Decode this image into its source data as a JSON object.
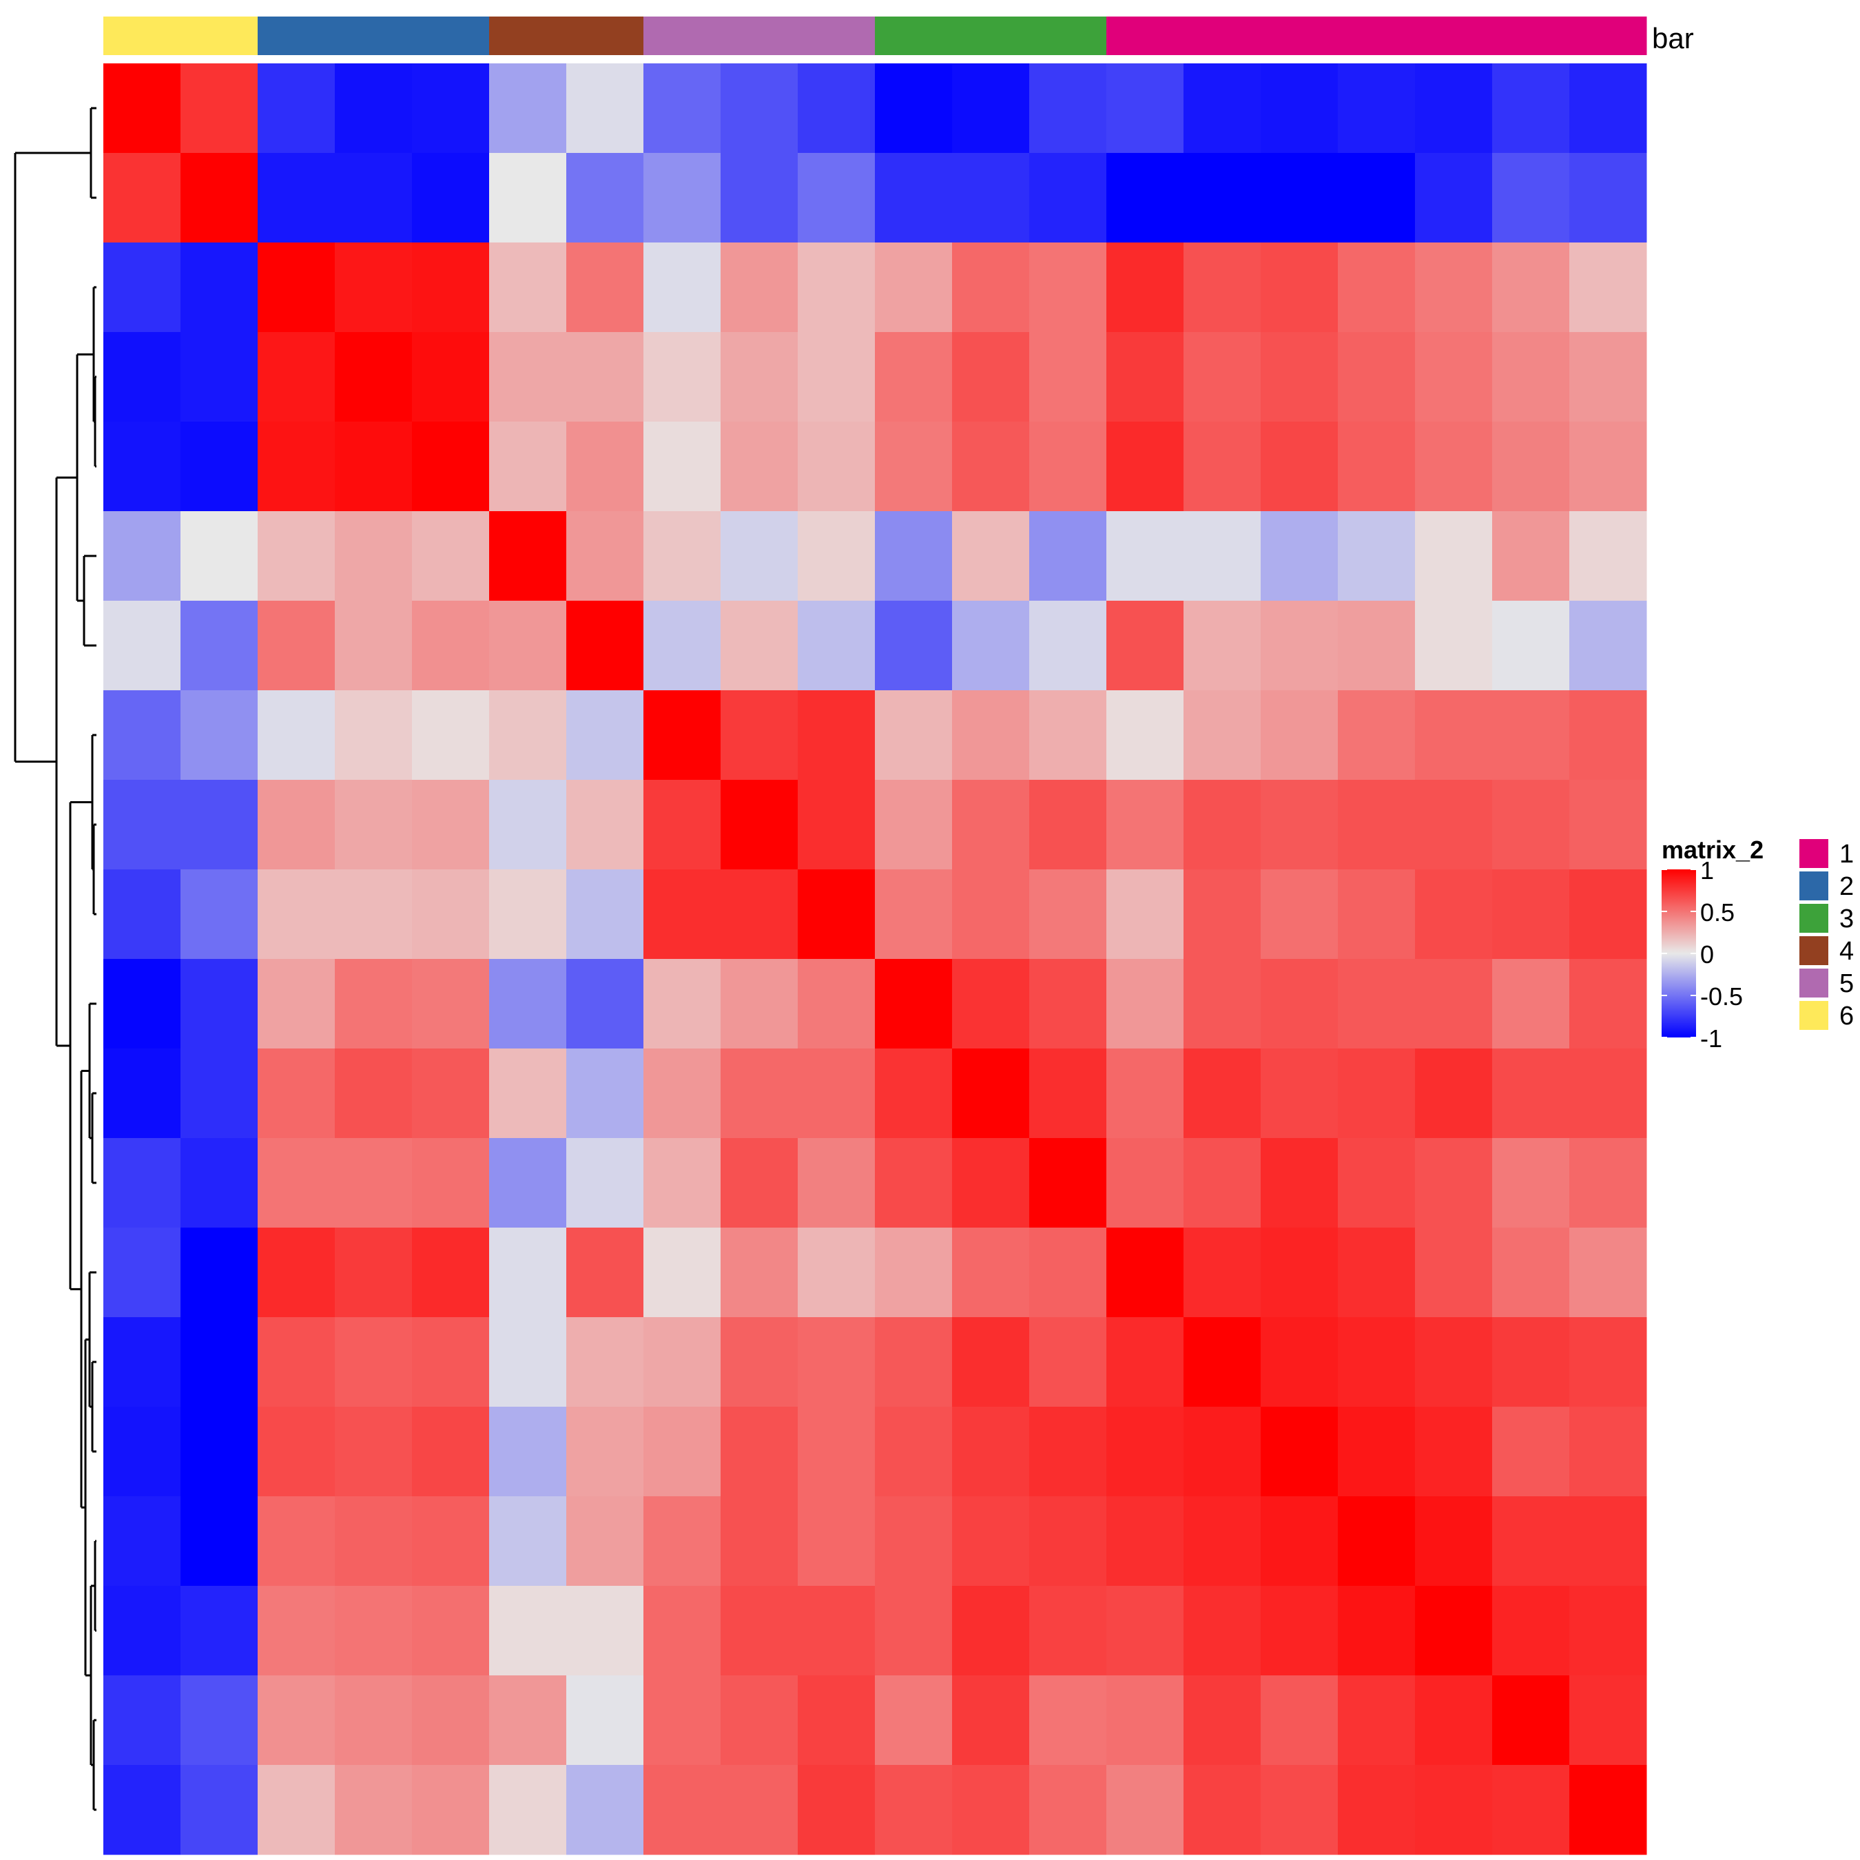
{
  "chart_data": {
    "type": "heatmap",
    "title": "",
    "xlabel": "",
    "ylabel": "",
    "annotation": {
      "name": "bar",
      "column_groups": [
        "6",
        "6",
        "2",
        "2",
        "2",
        "4",
        "4",
        "5",
        "5",
        "5",
        "3",
        "3",
        "3",
        "1",
        "1",
        "1",
        "1",
        "1",
        "1",
        "1"
      ]
    },
    "row_dendrogram": true,
    "column_dendrogram": false,
    "color_legend": {
      "title": "matrix_2",
      "ticks": [
        "1",
        "0.5",
        "0",
        "-0.5",
        "-1"
      ],
      "tick_values": [
        1,
        0.5,
        0,
        -0.5,
        -1
      ],
      "range": [
        -1,
        1
      ],
      "colors": {
        "low": "#0000ff",
        "mid": "#e8e8e8",
        "high": "#ff0000"
      }
    },
    "group_legend": {
      "entries": [
        {
          "label": "1",
          "color": "#e0007a"
        },
        {
          "label": "2",
          "color": "#2c68a8"
        },
        {
          "label": "3",
          "color": "#3da23a"
        },
        {
          "label": "4",
          "color": "#934020"
        },
        {
          "label": "5",
          "color": "#b06ab0"
        },
        {
          "label": "6",
          "color": "#fee95a"
        }
      ]
    },
    "values": [
      [
        1.0,
        0.78,
        -0.8,
        -0.93,
        -0.92,
        -0.3,
        -0.05,
        -0.56,
        -0.65,
        -0.75,
        -0.98,
        -0.95,
        -0.75,
        -0.72,
        -0.9,
        -0.92,
        -0.88,
        -0.9,
        -0.78,
        -0.85
      ],
      [
        0.78,
        1.0,
        -0.9,
        -0.9,
        -0.95,
        0.0,
        -0.5,
        -0.38,
        -0.65,
        -0.52,
        -0.8,
        -0.8,
        -0.85,
        -1.0,
        -1.0,
        -1.0,
        -1.0,
        -0.85,
        -0.65,
        -0.7
      ],
      [
        -0.8,
        -0.9,
        1.0,
        0.9,
        0.92,
        0.2,
        0.5,
        -0.05,
        0.35,
        0.2,
        0.3,
        0.55,
        0.5,
        0.82,
        0.65,
        0.68,
        0.55,
        0.48,
        0.38,
        0.2
      ],
      [
        -0.93,
        -0.9,
        0.9,
        1.0,
        0.95,
        0.28,
        0.28,
        0.12,
        0.28,
        0.2,
        0.5,
        0.65,
        0.5,
        0.75,
        0.6,
        0.65,
        0.58,
        0.5,
        0.42,
        0.35
      ],
      [
        -0.92,
        -0.95,
        0.92,
        0.95,
        1.0,
        0.22,
        0.38,
        0.05,
        0.3,
        0.22,
        0.48,
        0.62,
        0.52,
        0.82,
        0.62,
        0.7,
        0.6,
        0.52,
        0.45,
        0.38
      ],
      [
        -0.3,
        0.0,
        0.2,
        0.28,
        0.22,
        1.0,
        0.35,
        0.15,
        -0.1,
        0.1,
        -0.4,
        0.2,
        -0.38,
        -0.05,
        -0.05,
        -0.25,
        -0.15,
        0.05,
        0.35,
        0.08
      ],
      [
        -0.05,
        -0.5,
        0.5,
        0.28,
        0.38,
        0.35,
        1.0,
        -0.15,
        0.2,
        -0.18,
        -0.6,
        -0.25,
        -0.08,
        0.65,
        0.25,
        0.3,
        0.32,
        0.05,
        -0.02,
        -0.22
      ],
      [
        -0.56,
        -0.38,
        -0.05,
        0.12,
        0.05,
        0.15,
        -0.15,
        1.0,
        0.75,
        0.8,
        0.22,
        0.35,
        0.25,
        0.05,
        0.28,
        0.35,
        0.5,
        0.55,
        0.55,
        0.6
      ],
      [
        -0.65,
        -0.65,
        0.35,
        0.28,
        0.3,
        -0.1,
        0.2,
        0.75,
        1.0,
        0.8,
        0.35,
        0.55,
        0.65,
        0.5,
        0.65,
        0.62,
        0.65,
        0.65,
        0.62,
        0.58
      ],
      [
        -0.75,
        -0.52,
        0.2,
        0.2,
        0.22,
        0.1,
        -0.18,
        0.8,
        0.8,
        1.0,
        0.48,
        0.55,
        0.48,
        0.22,
        0.62,
        0.52,
        0.58,
        0.68,
        0.7,
        0.75
      ],
      [
        -0.98,
        -0.8,
        0.3,
        0.5,
        0.48,
        -0.4,
        -0.6,
        0.22,
        0.35,
        0.48,
        1.0,
        0.78,
        0.68,
        0.35,
        0.62,
        0.65,
        0.62,
        0.62,
        0.48,
        0.65
      ],
      [
        -0.95,
        -0.8,
        0.55,
        0.65,
        0.62,
        0.2,
        -0.25,
        0.35,
        0.55,
        0.55,
        0.78,
        1.0,
        0.8,
        0.55,
        0.78,
        0.7,
        0.72,
        0.8,
        0.68,
        0.68
      ],
      [
        -0.75,
        -0.85,
        0.5,
        0.5,
        0.52,
        -0.38,
        -0.08,
        0.25,
        0.65,
        0.45,
        0.68,
        0.8,
        1.0,
        0.58,
        0.65,
        0.82,
        0.7,
        0.65,
        0.48,
        0.55
      ],
      [
        -0.72,
        -1.0,
        0.82,
        0.75,
        0.82,
        -0.05,
        0.65,
        0.05,
        0.42,
        0.22,
        0.3,
        0.55,
        0.58,
        1.0,
        0.82,
        0.85,
        0.8,
        0.65,
        0.52,
        0.42
      ],
      [
        -0.9,
        -1.0,
        0.65,
        0.6,
        0.62,
        -0.05,
        0.25,
        0.28,
        0.58,
        0.55,
        0.62,
        0.8,
        0.65,
        0.82,
        1.0,
        0.88,
        0.85,
        0.8,
        0.75,
        0.72
      ],
      [
        -0.92,
        -1.0,
        0.68,
        0.65,
        0.7,
        -0.25,
        0.3,
        0.35,
        0.65,
        0.55,
        0.65,
        0.75,
        0.8,
        0.85,
        0.88,
        1.0,
        0.9,
        0.85,
        0.62,
        0.68
      ],
      [
        -0.88,
        -1.0,
        0.55,
        0.58,
        0.6,
        -0.15,
        0.32,
        0.5,
        0.65,
        0.55,
        0.62,
        0.72,
        0.75,
        0.8,
        0.85,
        0.9,
        1.0,
        0.92,
        0.78,
        0.78
      ],
      [
        -0.9,
        -0.85,
        0.48,
        0.5,
        0.52,
        0.05,
        0.05,
        0.55,
        0.68,
        0.68,
        0.62,
        0.8,
        0.72,
        0.7,
        0.8,
        0.85,
        0.92,
        1.0,
        0.85,
        0.82
      ],
      [
        -0.78,
        -0.65,
        0.38,
        0.42,
        0.45,
        0.35,
        -0.02,
        0.55,
        0.62,
        0.72,
        0.48,
        0.75,
        0.5,
        0.52,
        0.75,
        0.62,
        0.78,
        0.85,
        1.0,
        0.8
      ],
      [
        -0.85,
        -0.7,
        0.2,
        0.35,
        0.38,
        0.08,
        -0.22,
        0.58,
        0.58,
        0.75,
        0.65,
        0.68,
        0.55,
        0.45,
        0.72,
        0.68,
        0.8,
        0.82,
        0.8,
        1.0
      ]
    ]
  }
}
